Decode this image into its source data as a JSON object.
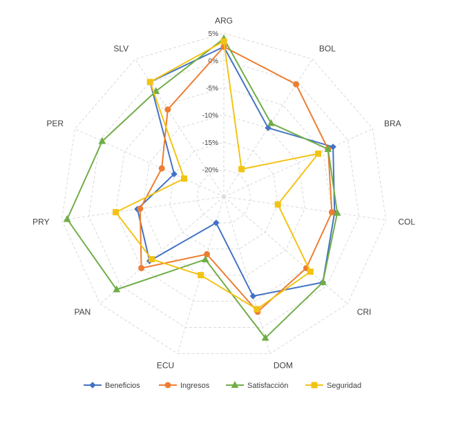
{
  "chart_data": {
    "type": "radar",
    "title": "",
    "categories": [
      "ARG",
      "BOL",
      "BRA",
      "COL",
      "CRI",
      "DOM",
      "ECU",
      "PAN",
      "PRY",
      "PER",
      "SLV"
    ],
    "rlim": [
      -25,
      5
    ],
    "ticks": [
      5,
      0,
      -5,
      -10,
      -15,
      -20
    ],
    "tick_labels": [
      "5%",
      "0%",
      "-5%",
      "-10%",
      "-15%",
      "-20%"
    ],
    "grid": true,
    "legend_position": "bottom",
    "series": [
      {
        "name": "Beneficios",
        "color": "#4472C4",
        "marker": "diamond",
        "values": [
          2.5,
          -10,
          -3,
          -4.5,
          -1,
          -6,
          -20,
          -7,
          -9,
          -15,
          0
        ]
      },
      {
        "name": "Ingresos",
        "color": "#ED7D31",
        "marker": "circle",
        "values": [
          2.5,
          -0.5,
          -4,
          -5,
          -5,
          -3,
          -14,
          -5,
          -9.5,
          -12.5,
          -6
        ]
      },
      {
        "name": "Satisfacción",
        "color": "#70AD47",
        "marker": "triangle",
        "values": [
          4,
          -9,
          -4,
          -4,
          -1,
          2,
          -13,
          1,
          4,
          -0.5,
          -2
        ]
      },
      {
        "name": "Seguridad",
        "color": "#F2C314",
        "marker": "square",
        "values": [
          3.5,
          -19,
          -6,
          -15,
          -4,
          -3.5,
          -10,
          -7.5,
          -5,
          -17,
          0
        ]
      }
    ]
  }
}
